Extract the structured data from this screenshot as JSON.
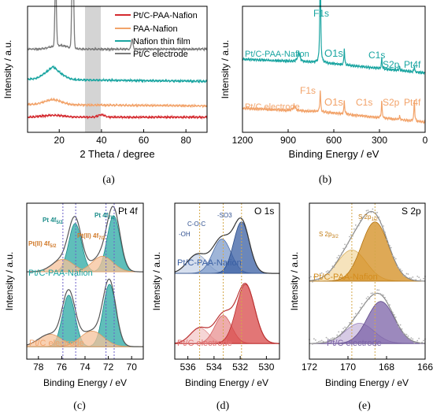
{
  "colors": {
    "red": "#d42a2f",
    "orange": "#f2a36a",
    "teal": "#1aa5a1",
    "gray": "#7a7a7a",
    "blue": "#3a5fa3",
    "pink": "#e07070",
    "gold": "#d38c1d",
    "purple": "#7b62a7",
    "highlight": "#d4d4d4"
  },
  "panels": {
    "a": {
      "label": "(a)"
    },
    "b": {
      "label": "(b)"
    },
    "c": {
      "label": "(c)"
    },
    "d": {
      "label": "(d)"
    },
    "e": {
      "label": "(e)"
    }
  },
  "chart_data": [
    {
      "id": "a",
      "type": "line",
      "xlabel": "2 Theta / degree",
      "ylabel": "Intensity / a.u.",
      "xlim": [
        5,
        90
      ],
      "xticks": [
        20,
        40,
        60,
        80
      ],
      "highlight_range": [
        36,
        43
      ],
      "series": [
        {
          "name": "Pt/C-PAA-Nafion",
          "color": "red",
          "peaks": [
            [
              40,
              4
            ]
          ],
          "baseline": 0.06
        },
        {
          "name": "PAA-Nafion",
          "color": "orange",
          "peaks": [
            [
              17,
              4
            ]
          ],
          "baseline": 0.16
        },
        {
          "name": "Nafion thin film",
          "color": "teal",
          "peaks": [
            [
              17,
              8
            ]
          ],
          "baseline": 0.34
        },
        {
          "name": "Pt/C electrode",
          "color": "gray",
          "peaks": [
            [
              18.5,
              60
            ],
            [
              26.5,
              100
            ],
            [
              54.5,
              6
            ]
          ],
          "baseline": 0.57
        }
      ]
    },
    {
      "id": "b",
      "type": "line",
      "xlabel": "Binding Energy / eV",
      "ylabel": "Intensity / a.u.",
      "xlim": [
        1200,
        0
      ],
      "xticks": [
        1200,
        900,
        600,
        300,
        0
      ],
      "series": [
        {
          "name": "Pt/C-PAA-Nafion",
          "color": "teal",
          "peaks": [
            [
              "F1s",
              689
            ],
            [
              "O1s",
              531
            ],
            [
              "C1s",
              285
            ],
            [
              "S2p",
              168
            ],
            [
              "Pt4f",
              71
            ]
          ]
        },
        {
          "name": "Pt/C electrode",
          "color": "orange",
          "peaks": [
            [
              "F1s",
              689
            ],
            [
              "O1s",
              531
            ],
            [
              "C1s",
              285
            ],
            [
              "S2p",
              168
            ],
            [
              "Pt4f",
              71
            ]
          ]
        }
      ],
      "annotations": [
        "F1s",
        "O1s",
        "C1s",
        "S2p",
        "Pt4f",
        "F1s",
        "O1s",
        "C1s",
        "S2p",
        "Pt4f"
      ]
    },
    {
      "id": "c",
      "type": "line",
      "title": "Pt 4f",
      "xlabel": "Binding Energy / eV",
      "ylabel": "Intensity / a.u.",
      "xlim": [
        79,
        69
      ],
      "xticks": [
        78,
        76,
        74,
        72,
        70
      ],
      "ref_lines": [
        75.9,
        74.8,
        72.2,
        71.5
      ],
      "series": [
        {
          "name": "Pt/C-PAA-Nafion",
          "color": "teal"
        },
        {
          "name": "Pt/C electrode",
          "color": "orange"
        }
      ],
      "annotations": [
        "Pt 4f",
        "5/2",
        "Pt 4f",
        "7/2",
        "Pt(II) 4f",
        "7/2",
        "Pt(II) 4f",
        "5/2"
      ]
    },
    {
      "id": "d",
      "type": "line",
      "title": "O 1s",
      "xlabel": "Binding Energy / eV",
      "ylabel": "Intensity / a.u.",
      "xlim": [
        537,
        529
      ],
      "xticks": [
        536,
        534,
        532,
        530
      ],
      "ref_lines": [
        535.1,
        533.3,
        531.9
      ],
      "series": [
        {
          "name": "Pt/C-PAA-Nafion",
          "color": "blue"
        },
        {
          "name": "Pt/C electrode",
          "color": "pink"
        }
      ],
      "annotations": [
        "-OH",
        "C-O-C",
        "-SO3"
      ]
    },
    {
      "id": "e",
      "type": "line",
      "title": "S 2p",
      "xlabel": "Binding Energy / eV",
      "ylabel": "Intensity / a.u.",
      "xlim": [
        172,
        166
      ],
      "xticks": [
        172,
        170,
        168,
        166
      ],
      "ref_lines": [
        169.8,
        168.6
      ],
      "series": [
        {
          "name": "Pt/C-PAA-Nafion",
          "color": "gold"
        },
        {
          "name": "Pt/C electrode",
          "color": "purple"
        }
      ],
      "annotations": [
        "S 2p",
        "1/2",
        "S 2p",
        "3/2"
      ]
    }
  ]
}
